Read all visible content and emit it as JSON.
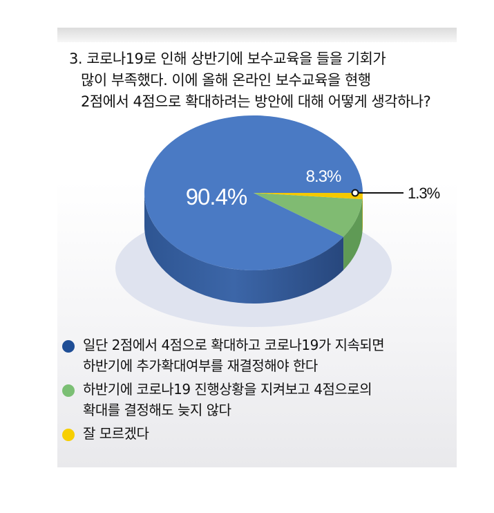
{
  "question": {
    "line1": "3. 코로나19로 인해 상반기에 보수교육을 들을 기회가",
    "line2": "많이 부족했다. 이에 올해 온라인 보수교육을 현행",
    "line3": "2점에서 4점으로 확대하려는 방안에 대해 어떻게 생각하나?"
  },
  "chart_data": {
    "type": "pie",
    "categories": [
      "일단 2점에서 4점으로 확대하고 코로나19가 지속되면 하반기에 추가확대여부를 재결정해야 한다",
      "하반기에 코로나19 진행상황을 지켜보고 4점으로의 확대를 결정해도 늦지 않다",
      "잘 모르겠다"
    ],
    "values": [
      90.4,
      8.3,
      1.3
    ],
    "labels": [
      "90.4%",
      "8.3%",
      "1.3%"
    ],
    "colors": [
      "#4a7ac4",
      "#80bb72",
      "#f5c900"
    ]
  },
  "legend": [
    {
      "text": "일단 2점에서 4점으로 확대하고 코로나19가 지속되면\n하반기에 추가확대여부를 재결정해야 한다",
      "color": "#1f4e96"
    },
    {
      "text": "하반기에 코로나19 진행상황을 지켜보고 4점으로의\n확대를 결정해도 늦지 않다",
      "color": "#7bbf74"
    },
    {
      "text": "잘 모르겠다",
      "color": "#f7cf00"
    }
  ]
}
